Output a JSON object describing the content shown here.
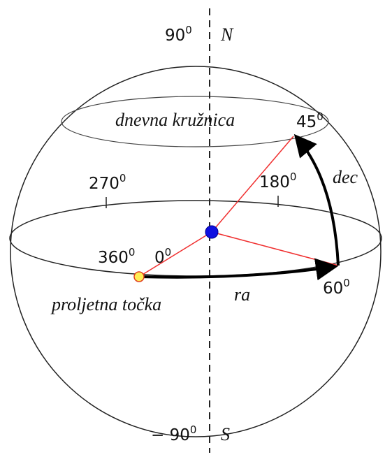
{
  "labels": {
    "north": {
      "text": "90",
      "sup": "0",
      "name": "N"
    },
    "south": {
      "text": "− 90",
      "sup": "0",
      "name": "S"
    },
    "daily_circle": "dnevna kružnica",
    "dec_angle": {
      "text": "45",
      "sup": "0"
    },
    "dec": "dec",
    "ra_270": {
      "text": "270",
      "sup": "0"
    },
    "ra_180": {
      "text": "180",
      "sup": "0"
    },
    "ra_360": {
      "text": "360",
      "sup": "0"
    },
    "ra_0": {
      "text": "0",
      "sup": "0"
    },
    "ra_angle": {
      "text": "60",
      "sup": "0"
    },
    "vernal_point": "proljetna točka",
    "ra": "ra"
  }
}
